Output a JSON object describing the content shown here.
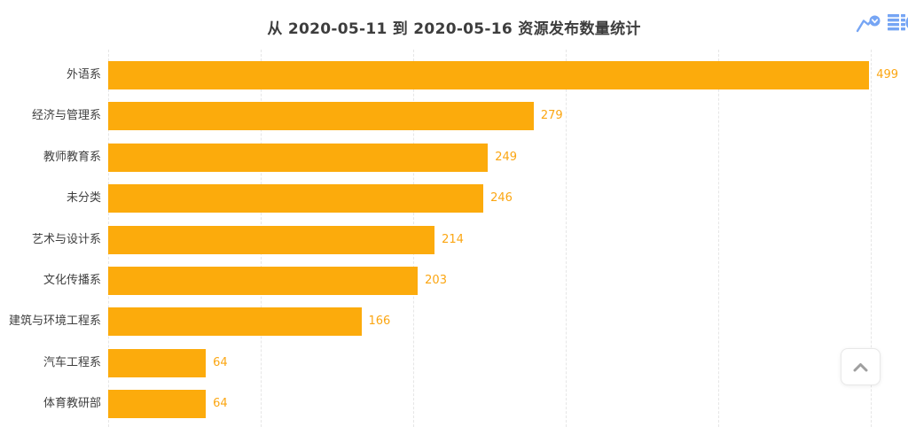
{
  "title": "从 2020-05-11 到 2020-05-16 资源发布数量统计",
  "toolbox": {
    "icons": [
      {
        "name": "data-zoom-icon"
      },
      {
        "name": "data-view-icon"
      }
    ],
    "icon_color": "#76a5f4"
  },
  "chart_data": {
    "type": "bar",
    "orientation": "horizontal",
    "title": "从 2020-05-11 到 2020-05-16 资源发布数量统计",
    "categories": [
      "外语系",
      "经济与管理系",
      "教师教育系",
      "未分类",
      "艺术与设计系",
      "文化传播系",
      "建筑与环境工程系",
      "汽车工程系",
      "体育教研部"
    ],
    "values": [
      499,
      279,
      249,
      246,
      214,
      203,
      166,
      64,
      64
    ],
    "xlabel": "",
    "ylabel": "",
    "xlim": [
      0,
      500
    ],
    "grid_ticks": [
      0,
      100,
      200,
      300,
      400,
      500
    ],
    "grid": true,
    "gridline_style": "dashed",
    "legend": false,
    "bar_color": "#fcab0c",
    "value_label_color": "#fba612",
    "category_label_color": "#3f3f3f"
  },
  "back_to_top": {
    "direction": "up"
  }
}
